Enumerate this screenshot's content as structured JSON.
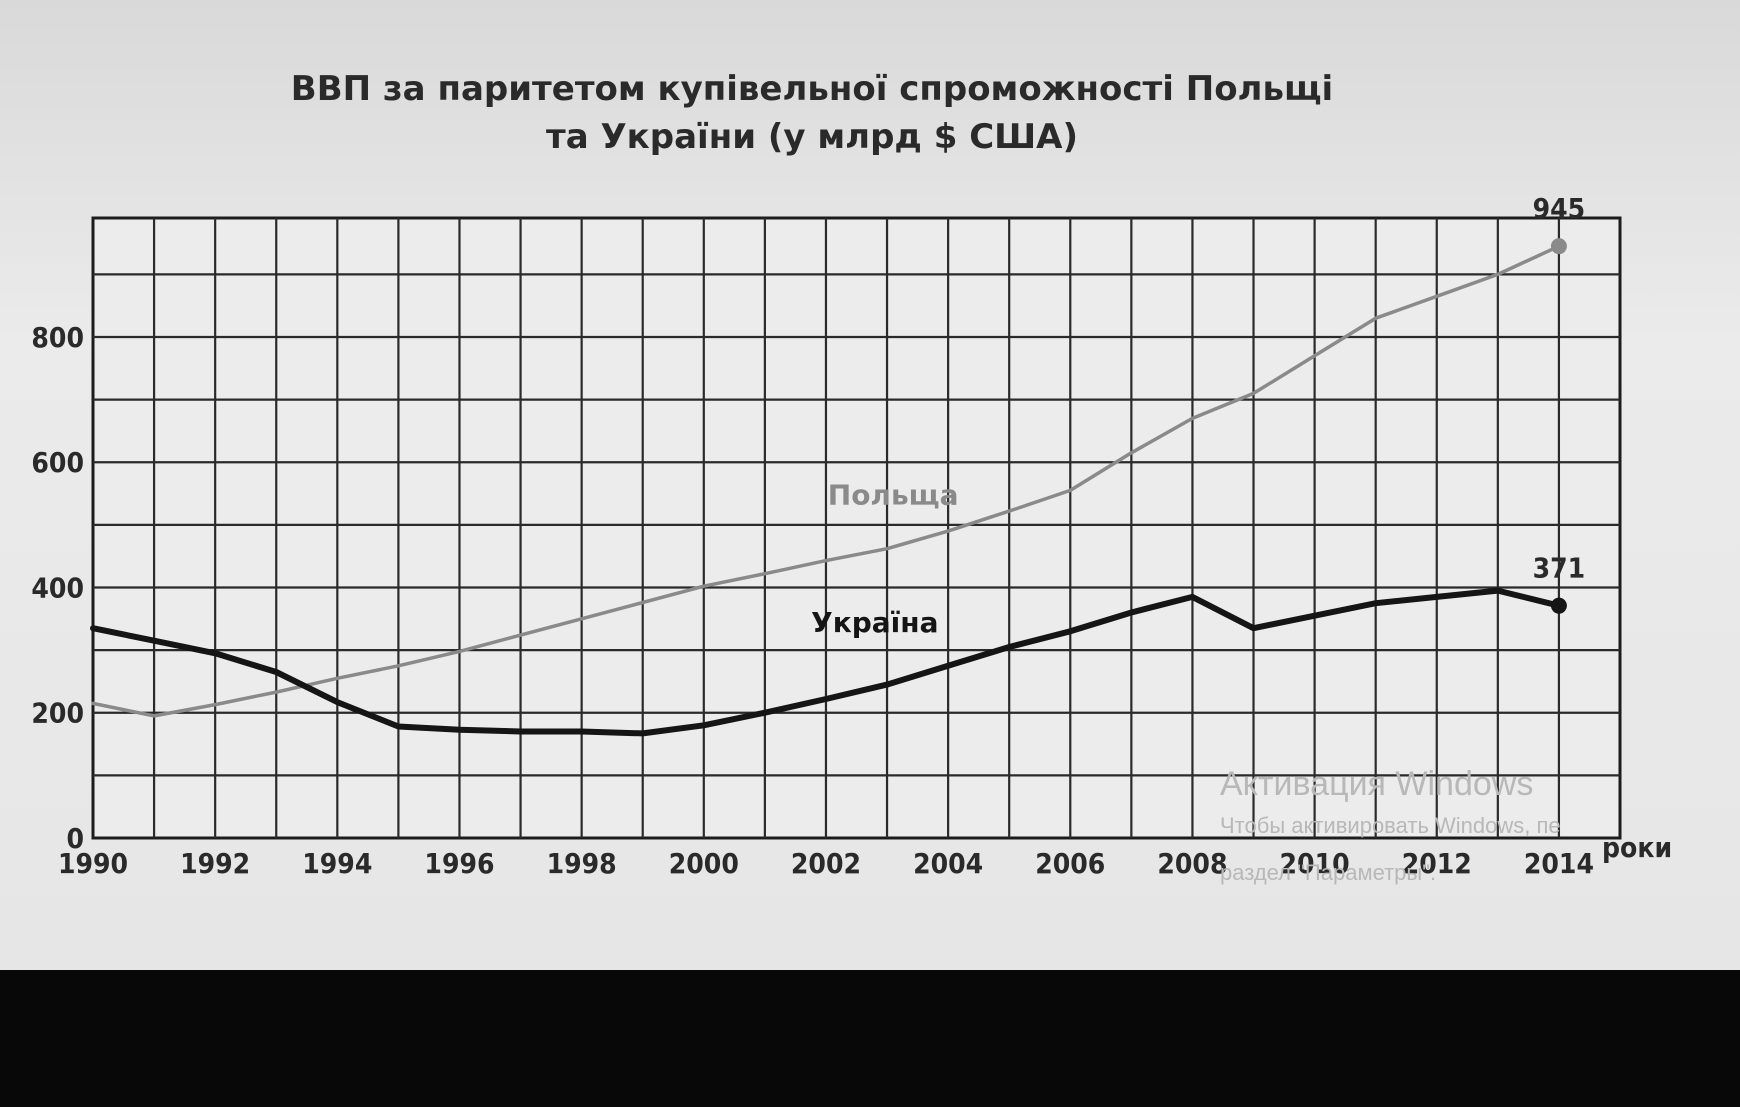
{
  "watermark": {
    "line1": "Активация Windows",
    "line2": "Чтобы активировать Windows, пе",
    "line3": "раздел \"Параметры\"."
  },
  "chart_data": {
    "type": "line",
    "title": "ВВП за паритетом купівельної спроможності Польщі",
    "subtitle": "та України (у млрд $ США)",
    "xlabel": "роки",
    "ylabel": "",
    "x": [
      1990,
      1991,
      1992,
      1993,
      1994,
      1995,
      1996,
      1997,
      1998,
      1999,
      2000,
      2001,
      2002,
      2003,
      2004,
      2005,
      2006,
      2007,
      2008,
      2009,
      2010,
      2011,
      2012,
      2013,
      2014
    ],
    "x_ticks": [
      "1990",
      "1992",
      "1994",
      "1996",
      "1998",
      "2000",
      "2002",
      "2004",
      "2006",
      "2008",
      "2010",
      "2012",
      "2014"
    ],
    "y_ticks": [
      "0",
      "200",
      "400",
      "600",
      "800"
    ],
    "ylim": [
      0,
      990
    ],
    "xlim": [
      1990,
      2015
    ],
    "grid": true,
    "series": [
      {
        "name": "Польща",
        "color": "#8a8a8a",
        "values": [
          215,
          195,
          213,
          233,
          255,
          275,
          298,
          324,
          350,
          376,
          402,
          422,
          443,
          462,
          490,
          522,
          555,
          615,
          670,
          710,
          770,
          830,
          865,
          900,
          945
        ],
        "end_label": "945"
      },
      {
        "name": "Україна",
        "color": "#151515",
        "values": [
          335,
          315,
          295,
          265,
          217,
          178,
          173,
          170,
          170,
          167,
          180,
          200,
          222,
          245,
          275,
          305,
          330,
          360,
          385,
          335,
          355,
          375,
          385,
          395,
          371
        ],
        "end_label": "371"
      }
    ]
  }
}
